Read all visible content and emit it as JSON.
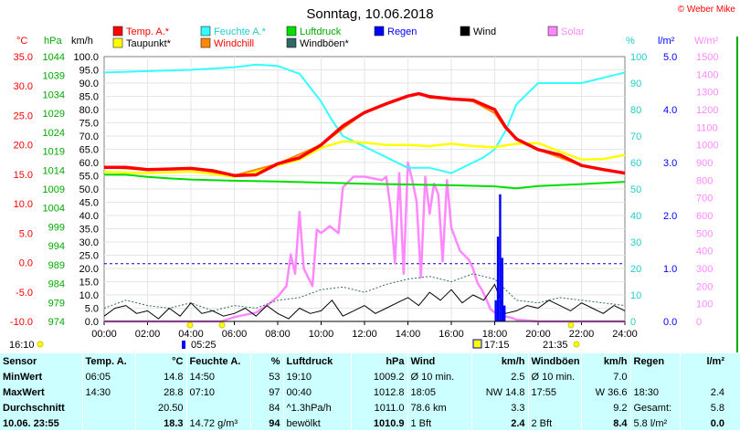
{
  "title": "Sonntag, 10.06.2018",
  "copyright": "© Weber Mike",
  "legend": [
    {
      "label": "Temp. A.*",
      "color": "#ff0000"
    },
    {
      "label": "Feuchte A.*",
      "color": "#33ffff"
    },
    {
      "label": "Luftdruck",
      "color": "#00dd00"
    },
    {
      "label": "Regen",
      "color": "#0000ff"
    },
    {
      "label": "Wind",
      "color": "#000000"
    },
    {
      "label": "Solar",
      "color": "#ff88ff"
    },
    {
      "label": "Taupunkt*",
      "color": "#ffff00"
    },
    {
      "label": "Windchill",
      "color": "#ff8800"
    },
    {
      "label": "Windböen*",
      "color": "#336666"
    }
  ],
  "units": {
    "temp": "°C",
    "press": "hPa",
    "wind": "km/h",
    "hum": "%",
    "rain": "l/m²",
    "solar": "W/m²"
  },
  "time_marks": {
    "left": "16:10",
    "sunrise": "05:25",
    "solar_noon": "17:15",
    "sunset": "21:35"
  },
  "chart_data": {
    "type": "line",
    "x_ticks": [
      "00:00",
      "02:00",
      "04:00",
      "06:00",
      "08:00",
      "10:00",
      "12:00",
      "14:00",
      "16:00",
      "18:00",
      "20:00",
      "22:00",
      "24:00"
    ],
    "axes": {
      "temp": {
        "min": -10,
        "max": 35,
        "ticks": [
          "35.0",
          "30.0",
          "25.0",
          "20.0",
          "15.0",
          "10.0",
          "5.0",
          "0.0",
          "-5.0",
          "-10.0"
        ]
      },
      "press": {
        "min": 974,
        "max": 1044,
        "ticks": [
          "1044",
          "1039",
          "1034",
          "1029",
          "1024",
          "1019",
          "1014",
          "1009",
          "1004",
          "999",
          "994",
          "989",
          "984",
          "979",
          "974"
        ]
      },
      "wind": {
        "min": 0,
        "max": 100,
        "ticks": [
          "100.0",
          "95.0",
          "90.0",
          "85.0",
          "80.0",
          "75.0",
          "70.0",
          "65.0",
          "60.0",
          "55.0",
          "50.0",
          "45.0",
          "40.0",
          "35.0",
          "30.0",
          "25.0",
          "20.0",
          "15.0",
          "10.0",
          "5.0",
          "0.0"
        ]
      },
      "hum": {
        "min": 0,
        "max": 100,
        "ticks": [
          "100",
          "90",
          "80",
          "70",
          "60",
          "50",
          "40",
          "30",
          "20",
          "10",
          "0"
        ]
      },
      "rain": {
        "min": 0,
        "max": 5,
        "ticks": [
          "5.0",
          "4.0",
          "3.0",
          "2.0",
          "1.0",
          "0.0"
        ]
      },
      "solar": {
        "min": 0,
        "max": 1500,
        "ticks": [
          "1500",
          "1400",
          "1300",
          "1200",
          "1100",
          "1000",
          "900",
          "800",
          "700",
          "600",
          "500",
          "400",
          "300",
          "200",
          "100",
          "0"
        ]
      }
    },
    "series": [
      {
        "name": "Temp. A.*",
        "axis": "temp",
        "x": [
          0,
          1,
          2,
          3,
          4,
          5,
          6,
          7,
          8,
          9,
          10,
          11,
          12,
          13,
          14,
          14.5,
          15,
          16,
          17,
          18,
          18.5,
          19,
          20,
          21,
          22,
          23,
          24
        ],
        "y": [
          16.2,
          16.2,
          15.8,
          15.9,
          16.0,
          15.6,
          14.8,
          14.9,
          16.8,
          17.8,
          20.0,
          23.2,
          25.5,
          27.0,
          28.3,
          28.7,
          28.2,
          27.8,
          27.6,
          26.0,
          23.0,
          21.0,
          19.2,
          18.3,
          16.5,
          15.8,
          15.2
        ]
      },
      {
        "name": "Windchill",
        "axis": "temp",
        "x": [
          0,
          2,
          4,
          6,
          8,
          10,
          12,
          14,
          14.5,
          15,
          16,
          17,
          18,
          18.5,
          19,
          20,
          22,
          24
        ],
        "y": [
          16.2,
          15.8,
          16.0,
          14.8,
          16.8,
          20.0,
          25.5,
          28.3,
          28.7,
          28.0,
          27.8,
          27.4,
          25.4,
          22.8,
          21.0,
          19.2,
          16.5,
          15.2
        ]
      },
      {
        "name": "Taupunkt*",
        "axis": "temp",
        "x": [
          0,
          2,
          4,
          6,
          7,
          8,
          9,
          10,
          11,
          12,
          13,
          14,
          15,
          16,
          17,
          18,
          19,
          20,
          21,
          22,
          23,
          24
        ],
        "y": [
          15.4,
          15.2,
          15.5,
          14.6,
          15.5,
          16.5,
          17.5,
          19.5,
          20.6,
          20.4,
          20.0,
          20.0,
          19.8,
          20.2,
          19.8,
          19.6,
          20.2,
          20.3,
          18.9,
          17.5,
          17.6,
          18.3
        ]
      },
      {
        "name": "Luftdruck",
        "axis": "press",
        "x": [
          0,
          1,
          2,
          3,
          4,
          6,
          8,
          10,
          12,
          14,
          16,
          18,
          19,
          20,
          22,
          24
        ],
        "y": [
          1012.8,
          1012.8,
          1012.2,
          1011.8,
          1011.5,
          1011.2,
          1011.0,
          1010.7,
          1010.4,
          1010.2,
          1010.0,
          1009.7,
          1009.2,
          1009.8,
          1010.3,
          1010.9
        ]
      },
      {
        "name": "Feuchte A.*",
        "axis": "hum",
        "x": [
          0,
          2,
          4,
          6,
          7,
          8,
          9,
          10,
          10.5,
          11,
          12,
          13,
          14,
          15,
          16,
          17,
          17.5,
          18,
          18.5,
          19,
          20,
          21,
          22,
          23,
          24
        ],
        "y": [
          94,
          94.5,
          95,
          96,
          97,
          96.5,
          93.5,
          83,
          76,
          70,
          66,
          62,
          58,
          58,
          56,
          60,
          62,
          65,
          72,
          82,
          90,
          90,
          90,
          92,
          94
        ]
      },
      {
        "name": "Solar",
        "axis": "solar",
        "x": [
          0,
          5.4,
          6,
          7,
          7.5,
          8,
          8.4,
          8.6,
          8.8,
          9,
          9.2,
          9.4,
          9.6,
          9.8,
          10,
          10.4,
          10.8,
          11,
          11.5,
          12,
          12.4,
          12.8,
          13,
          13.2,
          13.4,
          13.6,
          13.8,
          14,
          14.2,
          14.4,
          14.6,
          14.8,
          15,
          15.2,
          15.4,
          15.6,
          15.8,
          16,
          16.4,
          16.8,
          17,
          17.2,
          17.4,
          17.6,
          17.8,
          18,
          18.4,
          18.8,
          19,
          19.5,
          20,
          21.6,
          24
        ],
        "y": [
          0,
          0,
          25,
          50,
          90,
          140,
          200,
          380,
          270,
          620,
          300,
          250,
          200,
          520,
          500,
          540,
          500,
          760,
          820,
          820,
          810,
          800,
          820,
          640,
          330,
          840,
          270,
          900,
          800,
          680,
          250,
          820,
          610,
          780,
          720,
          340,
          800,
          530,
          400,
          350,
          300,
          220,
          180,
          130,
          70,
          50,
          30,
          20,
          10,
          5,
          0,
          0,
          0
        ]
      },
      {
        "name": "Wind",
        "axis": "wind",
        "x": [
          0,
          0.5,
          1,
          1.5,
          2,
          2.5,
          3,
          3.5,
          4,
          4.5,
          5,
          5.5,
          6,
          6.5,
          7,
          7.5,
          8,
          8.5,
          9,
          9.5,
          10,
          10.5,
          11,
          11.5,
          12,
          12.5,
          13,
          13.5,
          14,
          14.5,
          15,
          15.5,
          16,
          16.5,
          17,
          17.5,
          18,
          18.5,
          19,
          19.5,
          20,
          20.5,
          21,
          21.5,
          22,
          22.5,
          23,
          23.5,
          24
        ],
        "y": [
          2,
          5,
          6,
          3,
          4,
          1,
          5,
          2,
          7,
          3,
          4,
          2,
          3,
          5,
          2,
          6,
          3,
          1,
          5,
          3,
          4,
          8,
          2,
          4,
          6,
          3,
          5,
          7,
          9,
          6,
          11,
          8,
          12,
          7,
          10,
          8,
          14,
          3,
          4,
          6,
          5,
          8,
          6,
          4,
          7,
          5,
          3,
          6,
          4
        ]
      },
      {
        "name": "Windböen*",
        "axis": "wind",
        "x": [
          0,
          1,
          2,
          3,
          4,
          5,
          6,
          7,
          8,
          9,
          10,
          11,
          12,
          13,
          14,
          15,
          16,
          17,
          18,
          19,
          20,
          21,
          22,
          23,
          24
        ],
        "y": [
          5,
          8,
          6,
          5,
          7,
          4,
          6,
          5,
          8,
          9,
          12,
          13,
          11,
          14,
          16,
          17,
          15,
          18,
          16,
          8,
          7,
          9,
          8,
          7,
          6
        ]
      },
      {
        "name": "Regen",
        "axis": "rain",
        "x": [
          18.05,
          18.15,
          18.25,
          18.35,
          18.45
        ],
        "y": [
          0.4,
          1.6,
          2.4,
          1.2,
          0.3
        ]
      }
    ]
  },
  "stats": {
    "header": [
      "Sensor",
      "Temp. A.",
      "°C",
      "Feuchte A.",
      "%",
      "Luftdruck",
      "hPa",
      "Wind",
      "km/h",
      "Windböen",
      "km/h",
      "Regen",
      "l/m²"
    ],
    "rows": [
      {
        "label": "MinWert",
        "cells": [
          "06:05",
          "14.8",
          "14:50",
          "53",
          "19:10",
          "1009.2",
          "Ø 10 min.",
          "2.5",
          "Ø 10 min.",
          "7.0",
          "",
          ""
        ]
      },
      {
        "label": "MaxWert",
        "cells": [
          "14:30",
          "28.8",
          "07:10",
          "97",
          "00:40",
          "1012.8",
          "18:05",
          "NW 14.8",
          "17:55",
          "W 36.6",
          "18:30",
          "2.4"
        ]
      },
      {
        "label": "Durchschnitt",
        "cells": [
          "",
          "20.50",
          "",
          "84",
          "^1.3hPa/h",
          "1011.0",
          "78.6 km",
          "3.3",
          "",
          "9.2",
          "Gesamt:",
          "5.8"
        ]
      },
      {
        "label": "10.06. 23:55",
        "cells": [
          "",
          "18.3",
          "14.72 g/m³",
          "94",
          "bewölkt",
          "1010.9",
          "1 Bft",
          "2.4",
          "2 Bft",
          "8.4",
          "5.8 l/m²",
          "0.0"
        ]
      }
    ]
  }
}
